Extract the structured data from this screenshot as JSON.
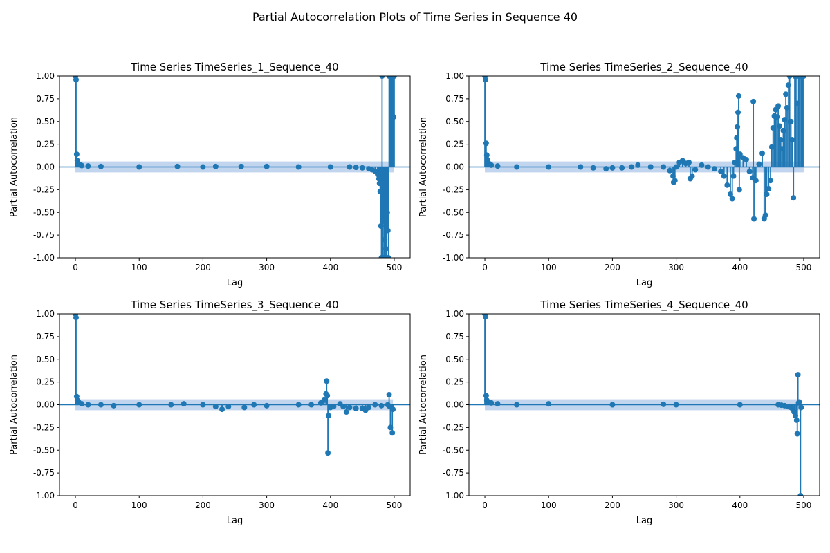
{
  "suptitle": "Partial Autocorrelation Plots of Time Series in Sequence 40",
  "colors": {
    "stem": "#1f77b4",
    "band": "#aec7e8",
    "axis": "#000000"
  },
  "chart_data": [
    {
      "type": "stem",
      "title": "Time Series TimeSeries_1_Sequence_40",
      "xlabel": "Lag",
      "ylabel": "Partial Autocorrelation",
      "xlim": [
        -25,
        525
      ],
      "ylim": [
        -1.0,
        1.0
      ],
      "xticks": [
        "0",
        "100",
        "200",
        "300",
        "400",
        "500"
      ],
      "yticks": [
        "1.00",
        "0.75",
        "0.50",
        "0.25",
        "0.00",
        "-0.25",
        "-0.50",
        "-0.75",
        "-1.00"
      ],
      "confidence": 0.06,
      "points": [
        [
          0,
          1.0
        ],
        [
          1,
          0.96
        ],
        [
          2,
          0.14
        ],
        [
          3,
          0.07
        ],
        [
          4,
          0.04
        ],
        [
          5,
          0.03
        ],
        [
          8,
          0.02
        ],
        [
          10,
          0.015
        ],
        [
          20,
          0.01
        ],
        [
          40,
          0.005
        ],
        [
          100,
          0.0
        ],
        [
          160,
          0.005
        ],
        [
          200,
          0.0
        ],
        [
          220,
          0.005
        ],
        [
          260,
          0.005
        ],
        [
          300,
          0.005
        ],
        [
          350,
          0.0
        ],
        [
          400,
          0.0
        ],
        [
          430,
          0.0
        ],
        [
          440,
          -0.005
        ],
        [
          450,
          -0.01
        ],
        [
          460,
          -0.02
        ],
        [
          465,
          -0.03
        ],
        [
          470,
          -0.05
        ],
        [
          474,
          -0.08
        ],
        [
          476,
          -0.13
        ],
        [
          477,
          -0.18
        ],
        [
          478,
          -0.27
        ],
        [
          479,
          -0.65
        ],
        [
          480,
          -1.0
        ],
        [
          481,
          1.0
        ],
        [
          482,
          -1.0
        ],
        [
          483,
          -0.6
        ],
        [
          484,
          -1.0
        ],
        [
          485,
          -0.8
        ],
        [
          486,
          -1.0
        ],
        [
          487,
          -0.9
        ],
        [
          488,
          -1.0
        ],
        [
          489,
          -0.5
        ],
        [
          490,
          -0.7
        ],
        [
          491,
          -1.0
        ],
        [
          492,
          1.0
        ],
        [
          493,
          1.0
        ],
        [
          494,
          1.0
        ],
        [
          495,
          1.0
        ],
        [
          496,
          1.0
        ],
        [
          497,
          1.0
        ],
        [
          498,
          1.0
        ],
        [
          499,
          0.55
        ],
        [
          500,
          1.0
        ]
      ]
    },
    {
      "type": "stem",
      "title": "Time Series TimeSeries_2_Sequence_40",
      "xlabel": "Lag",
      "ylabel": "Partial Autocorrelation",
      "xlim": [
        -25,
        525
      ],
      "ylim": [
        -1.0,
        1.0
      ],
      "xticks": [
        "0",
        "100",
        "200",
        "300",
        "400",
        "500"
      ],
      "yticks": [
        "1.00",
        "0.75",
        "0.50",
        "0.25",
        "0.00",
        "-0.25",
        "-0.50",
        "-0.75",
        "-1.00"
      ],
      "confidence": 0.06,
      "points": [
        [
          0,
          1.0
        ],
        [
          1,
          0.96
        ],
        [
          2,
          0.26
        ],
        [
          3,
          0.13
        ],
        [
          4,
          0.08
        ],
        [
          5,
          0.05
        ],
        [
          8,
          0.03
        ],
        [
          10,
          0.02
        ],
        [
          20,
          0.01
        ],
        [
          50,
          0.0
        ],
        [
          100,
          0.0
        ],
        [
          150,
          0.0
        ],
        [
          170,
          -0.01
        ],
        [
          190,
          -0.02
        ],
        [
          200,
          -0.01
        ],
        [
          215,
          -0.01
        ],
        [
          230,
          0.0
        ],
        [
          240,
          0.02
        ],
        [
          260,
          0.0
        ],
        [
          280,
          0.0
        ],
        [
          290,
          -0.04
        ],
        [
          295,
          -0.1
        ],
        [
          296,
          -0.17
        ],
        [
          298,
          -0.15
        ],
        [
          300,
          0.0
        ],
        [
          305,
          0.05
        ],
        [
          310,
          0.07
        ],
        [
          315,
          0.04
        ],
        [
          320,
          0.05
        ],
        [
          322,
          -0.13
        ],
        [
          325,
          -0.1
        ],
        [
          330,
          -0.03
        ],
        [
          340,
          0.02
        ],
        [
          350,
          0.0
        ],
        [
          360,
          -0.02
        ],
        [
          370,
          -0.05
        ],
        [
          375,
          -0.1
        ],
        [
          380,
          -0.2
        ],
        [
          385,
          -0.3
        ],
        [
          388,
          -0.35
        ],
        [
          390,
          -0.1
        ],
        [
          392,
          0.05
        ],
        [
          394,
          0.2
        ],
        [
          395,
          0.32
        ],
        [
          396,
          0.44
        ],
        [
          397,
          0.6
        ],
        [
          398,
          0.78
        ],
        [
          399,
          -0.25
        ],
        [
          400,
          0.14
        ],
        [
          405,
          0.1
        ],
        [
          410,
          0.08
        ],
        [
          415,
          -0.05
        ],
        [
          420,
          -0.12
        ],
        [
          421,
          0.72
        ],
        [
          422,
          -0.57
        ],
        [
          425,
          -0.15
        ],
        [
          430,
          0.03
        ],
        [
          435,
          0.15
        ],
        [
          438,
          -0.57
        ],
        [
          440,
          -0.53
        ],
        [
          442,
          -0.3
        ],
        [
          445,
          -0.24
        ],
        [
          448,
          -0.15
        ],
        [
          450,
          0.22
        ],
        [
          452,
          0.43
        ],
        [
          454,
          0.56
        ],
        [
          456,
          0.63
        ],
        [
          458,
          0.55
        ],
        [
          460,
          0.67
        ],
        [
          462,
          0.45
        ],
        [
          464,
          0.3
        ],
        [
          466,
          0.2
        ],
        [
          468,
          0.4
        ],
        [
          470,
          0.52
        ],
        [
          472,
          0.8
        ],
        [
          474,
          0.65
        ],
        [
          476,
          0.9
        ],
        [
          478,
          1.0
        ],
        [
          480,
          0.5
        ],
        [
          482,
          0.3
        ],
        [
          484,
          -0.34
        ],
        [
          486,
          1.0
        ],
        [
          488,
          1.0
        ],
        [
          490,
          0.7
        ],
        [
          492,
          1.0
        ],
        [
          494,
          1.0
        ],
        [
          496,
          1.0
        ],
        [
          498,
          1.0
        ],
        [
          500,
          1.0
        ]
      ]
    },
    {
      "type": "stem",
      "title": "Time Series TimeSeries_3_Sequence_40",
      "xlabel": "Lag",
      "ylabel": "Partial Autocorrelation",
      "xlim": [
        -25,
        525
      ],
      "ylim": [
        -1.0,
        1.0
      ],
      "xticks": [
        "0",
        "100",
        "200",
        "300",
        "400",
        "500"
      ],
      "yticks": [
        "1.00",
        "0.75",
        "0.50",
        "0.25",
        "0.00",
        "-0.25",
        "-0.50",
        "-0.75",
        "-1.00"
      ],
      "confidence": 0.06,
      "points": [
        [
          0,
          1.0
        ],
        [
          1,
          0.96
        ],
        [
          2,
          0.09
        ],
        [
          3,
          0.05
        ],
        [
          5,
          0.03
        ],
        [
          10,
          0.01
        ],
        [
          20,
          0.0
        ],
        [
          40,
          0.0
        ],
        [
          60,
          -0.01
        ],
        [
          100,
          0.0
        ],
        [
          150,
          0.0
        ],
        [
          170,
          0.01
        ],
        [
          200,
          0.0
        ],
        [
          220,
          -0.02
        ],
        [
          230,
          -0.05
        ],
        [
          240,
          -0.02
        ],
        [
          265,
          -0.03
        ],
        [
          280,
          0.0
        ],
        [
          300,
          -0.01
        ],
        [
          350,
          0.0
        ],
        [
          370,
          0.0
        ],
        [
          385,
          0.02
        ],
        [
          390,
          0.05
        ],
        [
          393,
          0.12
        ],
        [
          394,
          0.26
        ],
        [
          395,
          0.1
        ],
        [
          396,
          -0.53
        ],
        [
          397,
          -0.12
        ],
        [
          400,
          -0.03
        ],
        [
          405,
          -0.02
        ],
        [
          415,
          0.01
        ],
        [
          420,
          -0.02
        ],
        [
          425,
          -0.08
        ],
        [
          430,
          -0.03
        ],
        [
          440,
          -0.04
        ],
        [
          450,
          -0.04
        ],
        [
          455,
          -0.06
        ],
        [
          460,
          -0.03
        ],
        [
          470,
          0.0
        ],
        [
          480,
          -0.01
        ],
        [
          490,
          0.0
        ],
        [
          492,
          0.11
        ],
        [
          493,
          -0.02
        ],
        [
          494,
          -0.25
        ],
        [
          495,
          -0.02
        ],
        [
          497,
          -0.31
        ],
        [
          498,
          -0.05
        ]
      ]
    },
    {
      "type": "stem",
      "title": "Time Series TimeSeries_4_Sequence_40",
      "xlabel": "Lag",
      "ylabel": "Partial Autocorrelation",
      "xlim": [
        -25,
        525
      ],
      "ylim": [
        -1.0,
        1.0
      ],
      "xticks": [
        "0",
        "100",
        "200",
        "300",
        "400",
        "500"
      ],
      "yticks": [
        "1.00",
        "0.75",
        "0.50",
        "0.25",
        "0.00",
        "-0.25",
        "-0.50",
        "-0.75",
        "-1.00"
      ],
      "confidence": 0.06,
      "points": [
        [
          0,
          1.0
        ],
        [
          1,
          0.97
        ],
        [
          2,
          0.1
        ],
        [
          3,
          0.05
        ],
        [
          5,
          0.03
        ],
        [
          10,
          0.02
        ],
        [
          20,
          0.01
        ],
        [
          50,
          0.0
        ],
        [
          100,
          0.01
        ],
        [
          200,
          0.0
        ],
        [
          280,
          0.005
        ],
        [
          300,
          0.0
        ],
        [
          400,
          0.0
        ],
        [
          460,
          0.0
        ],
        [
          465,
          -0.005
        ],
        [
          470,
          -0.01
        ],
        [
          475,
          -0.02
        ],
        [
          480,
          -0.03
        ],
        [
          483,
          -0.05
        ],
        [
          485,
          -0.08
        ],
        [
          487,
          -0.12
        ],
        [
          489,
          -0.17
        ],
        [
          490,
          -0.32
        ],
        [
          491,
          0.33
        ],
        [
          492,
          0.02
        ],
        [
          493,
          0.03
        ],
        [
          495,
          -1.0
        ],
        [
          496,
          -0.03
        ]
      ]
    }
  ]
}
